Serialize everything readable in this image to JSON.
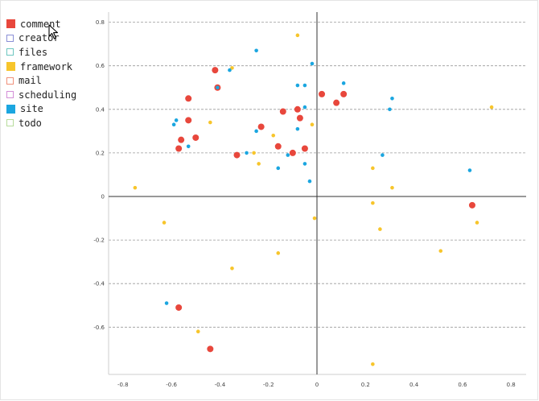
{
  "legend": {
    "items": [
      {
        "label": "comment",
        "color": "#e8473c",
        "style": "filled"
      },
      {
        "label": "creator",
        "color": "#8a8fd6",
        "style": "outline"
      },
      {
        "label": "files",
        "color": "#6cc6c0",
        "style": "outline"
      },
      {
        "label": "framework",
        "color": "#f7c52b",
        "style": "filled"
      },
      {
        "label": "mail",
        "color": "#f0907a",
        "style": "outline"
      },
      {
        "label": "scheduling",
        "color": "#d48fd8",
        "style": "outline"
      },
      {
        "label": "site",
        "color": "#1ba6e0",
        "style": "filled"
      },
      {
        "label": "todo",
        "color": "#b7dc9c",
        "style": "outline"
      }
    ]
  },
  "chart_data": {
    "type": "scatter",
    "title": "",
    "xlabel": "",
    "ylabel": "",
    "xlim": [
      -0.85,
      0.85
    ],
    "ylim": [
      -0.82,
      0.85
    ],
    "x_ticks": [
      -0.8,
      -0.6,
      -0.4,
      -0.2,
      0,
      0.2,
      0.4,
      0.6,
      0.8
    ],
    "y_ticks": [
      0.8,
      0.6,
      0.4,
      0.2,
      0,
      -0.2,
      -0.4,
      -0.6
    ],
    "x_tick_labels": [
      "-0.8",
      "-0.6",
      "-0.4",
      "-0.2",
      "0",
      "0.2",
      "0.4",
      "0.6",
      "0.8"
    ],
    "y_tick_labels": [
      "0.8",
      "0.6",
      "0.4",
      "0.2",
      "0",
      "-0.2",
      "-0.4",
      "-0.6"
    ],
    "grid": "horizontal-dashed",
    "legend_position": "top-left",
    "series": [
      {
        "name": "comment",
        "color": "#e8473c",
        "points": [
          [
            -0.42,
            0.58
          ],
          [
            -0.41,
            0.5
          ],
          [
            -0.53,
            0.45
          ],
          [
            -0.53,
            0.35
          ],
          [
            -0.56,
            0.26
          ],
          [
            -0.57,
            0.22
          ],
          [
            -0.5,
            0.27
          ],
          [
            -0.33,
            0.19
          ],
          [
            -0.23,
            0.32
          ],
          [
            -0.16,
            0.23
          ],
          [
            -0.14,
            0.39
          ],
          [
            -0.08,
            0.4
          ],
          [
            -0.07,
            0.36
          ],
          [
            -0.1,
            0.2
          ],
          [
            -0.05,
            0.22
          ],
          [
            0.02,
            0.47
          ],
          [
            0.08,
            0.43
          ],
          [
            0.11,
            0.47
          ],
          [
            0.64,
            -0.04
          ],
          [
            -0.57,
            -0.51
          ],
          [
            -0.44,
            -0.7
          ]
        ]
      },
      {
        "name": "framework",
        "color": "#f7c52b",
        "points": [
          [
            -0.08,
            0.74
          ],
          [
            -0.35,
            0.59
          ],
          [
            -0.44,
            0.34
          ],
          [
            -0.26,
            0.2
          ],
          [
            -0.24,
            0.15
          ],
          [
            -0.18,
            0.28
          ],
          [
            -0.02,
            0.33
          ],
          [
            0.72,
            0.41
          ],
          [
            -0.75,
            0.04
          ],
          [
            -0.63,
            -0.12
          ],
          [
            -0.01,
            -0.1
          ],
          [
            0.23,
            0.13
          ],
          [
            0.31,
            0.04
          ],
          [
            0.23,
            -0.03
          ],
          [
            0.26,
            -0.15
          ],
          [
            0.66,
            -0.12
          ],
          [
            -0.16,
            -0.26
          ],
          [
            0.51,
            -0.25
          ],
          [
            -0.35,
            -0.33
          ],
          [
            -0.49,
            -0.62
          ],
          [
            0.23,
            -0.77
          ]
        ]
      },
      {
        "name": "site",
        "color": "#1ba6e0",
        "points": [
          [
            -0.25,
            0.67
          ],
          [
            -0.36,
            0.58
          ],
          [
            -0.41,
            0.5
          ],
          [
            -0.02,
            0.61
          ],
          [
            -0.08,
            0.51
          ],
          [
            -0.05,
            0.51
          ],
          [
            0.11,
            0.52
          ],
          [
            0.31,
            0.45
          ],
          [
            0.3,
            0.4
          ],
          [
            -0.05,
            0.41
          ],
          [
            -0.08,
            0.31
          ],
          [
            -0.58,
            0.35
          ],
          [
            -0.59,
            0.33
          ],
          [
            -0.25,
            0.3
          ],
          [
            -0.29,
            0.2
          ],
          [
            -0.12,
            0.19
          ],
          [
            -0.53,
            0.23
          ],
          [
            -0.16,
            0.13
          ],
          [
            -0.05,
            0.15
          ],
          [
            -0.03,
            0.07
          ],
          [
            0.27,
            0.19
          ],
          [
            0.63,
            0.12
          ],
          [
            -0.62,
            -0.49
          ]
        ]
      }
    ]
  }
}
